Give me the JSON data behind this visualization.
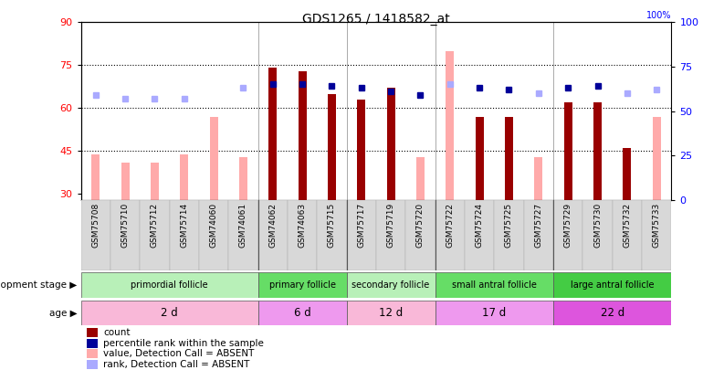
{
  "title": "GDS1265 / 1418582_at",
  "samples": [
    "GSM75708",
    "GSM75710",
    "GSM75712",
    "GSM75714",
    "GSM74060",
    "GSM74061",
    "GSM74062",
    "GSM74063",
    "GSM75715",
    "GSM75717",
    "GSM75719",
    "GSM75720",
    "GSM75722",
    "GSM75724",
    "GSM75725",
    "GSM75727",
    "GSM75729",
    "GSM75730",
    "GSM75732",
    "GSM75733"
  ],
  "count_values": [
    null,
    null,
    null,
    null,
    null,
    null,
    74,
    73,
    65,
    63,
    67,
    null,
    null,
    57,
    57,
    null,
    62,
    62,
    46,
    null
  ],
  "percentile_values": [
    null,
    null,
    null,
    null,
    null,
    null,
    65,
    65,
    64,
    63,
    61,
    59,
    null,
    63,
    62,
    null,
    63,
    64,
    null,
    null
  ],
  "absent_value": [
    44,
    41,
    41,
    44,
    57,
    43,
    null,
    null,
    null,
    null,
    null,
    43,
    80,
    null,
    null,
    43,
    null,
    null,
    null,
    57
  ],
  "absent_rank": [
    59,
    57,
    57,
    57,
    null,
    63,
    null,
    null,
    null,
    null,
    null,
    null,
    65,
    null,
    null,
    60,
    null,
    null,
    60,
    62
  ],
  "ylim_left": [
    28,
    90
  ],
  "ylim_right": [
    0,
    100
  ],
  "yticks_left": [
    30,
    45,
    60,
    75,
    90
  ],
  "yticks_right": [
    0,
    25,
    50,
    75,
    100
  ],
  "hlines": [
    45,
    60,
    75
  ],
  "group_ranges": [
    [
      0,
      5
    ],
    [
      6,
      8
    ],
    [
      9,
      11
    ],
    [
      12,
      15
    ],
    [
      16,
      19
    ]
  ],
  "group_labels": [
    "primordial follicle",
    "primary follicle",
    "secondary follicle",
    "small antral follicle",
    "large antral follicle"
  ],
  "group_colors": [
    "#b8f0b8",
    "#66dd66",
    "#b8f0b8",
    "#66dd66",
    "#44cc44"
  ],
  "age_labels": [
    "2 d",
    "6 d",
    "12 d",
    "17 d",
    "22 d"
  ],
  "age_colors": [
    "#f9b8d8",
    "#ee99ee",
    "#f9b8d8",
    "#ee99ee",
    "#dd55dd"
  ],
  "count_color": "#990000",
  "percentile_color": "#000099",
  "absent_value_color": "#ffaaaa",
  "absent_rank_color": "#aaaaff",
  "bar_width": 0.5
}
